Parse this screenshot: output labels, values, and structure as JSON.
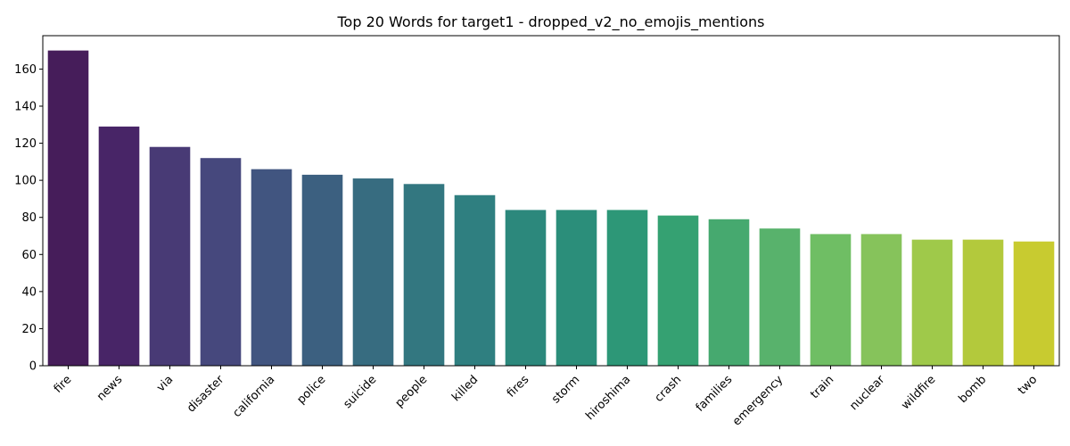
{
  "chart_data": {
    "type": "bar",
    "title": "Top 20 Words for target1 - dropped_v2_no_emojis_mentions",
    "xlabel": "",
    "ylabel": "",
    "categories": [
      "fire",
      "news",
      "via",
      "disaster",
      "california",
      "police",
      "suicide",
      "people",
      "killed",
      "fires",
      "storm",
      "hiroshima",
      "crash",
      "families",
      "emergency",
      "train",
      "nuclear",
      "wildfire",
      "bomb",
      "two"
    ],
    "values": [
      170,
      129,
      118,
      112,
      106,
      103,
      101,
      98,
      92,
      84,
      84,
      84,
      81,
      79,
      74,
      71,
      71,
      68,
      68,
      67
    ],
    "ylim": [
      0,
      178
    ],
    "yticks": [
      0,
      20,
      40,
      60,
      80,
      100,
      120,
      140,
      160
    ],
    "grid": false,
    "legend": "none",
    "colors": [
      "#461d5a",
      "#482567",
      "#483a75",
      "#46487d",
      "#415580",
      "#3c6080",
      "#376c80",
      "#337780",
      "#2f7f80",
      "#2c887c",
      "#2b8e7a",
      "#2d9777",
      "#35a172",
      "#46a96f",
      "#58b26c",
      "#6fbe64",
      "#86c35b",
      "#9fc94a",
      "#b3c93c",
      "#c8cb30"
    ],
    "palette": "viridis"
  }
}
